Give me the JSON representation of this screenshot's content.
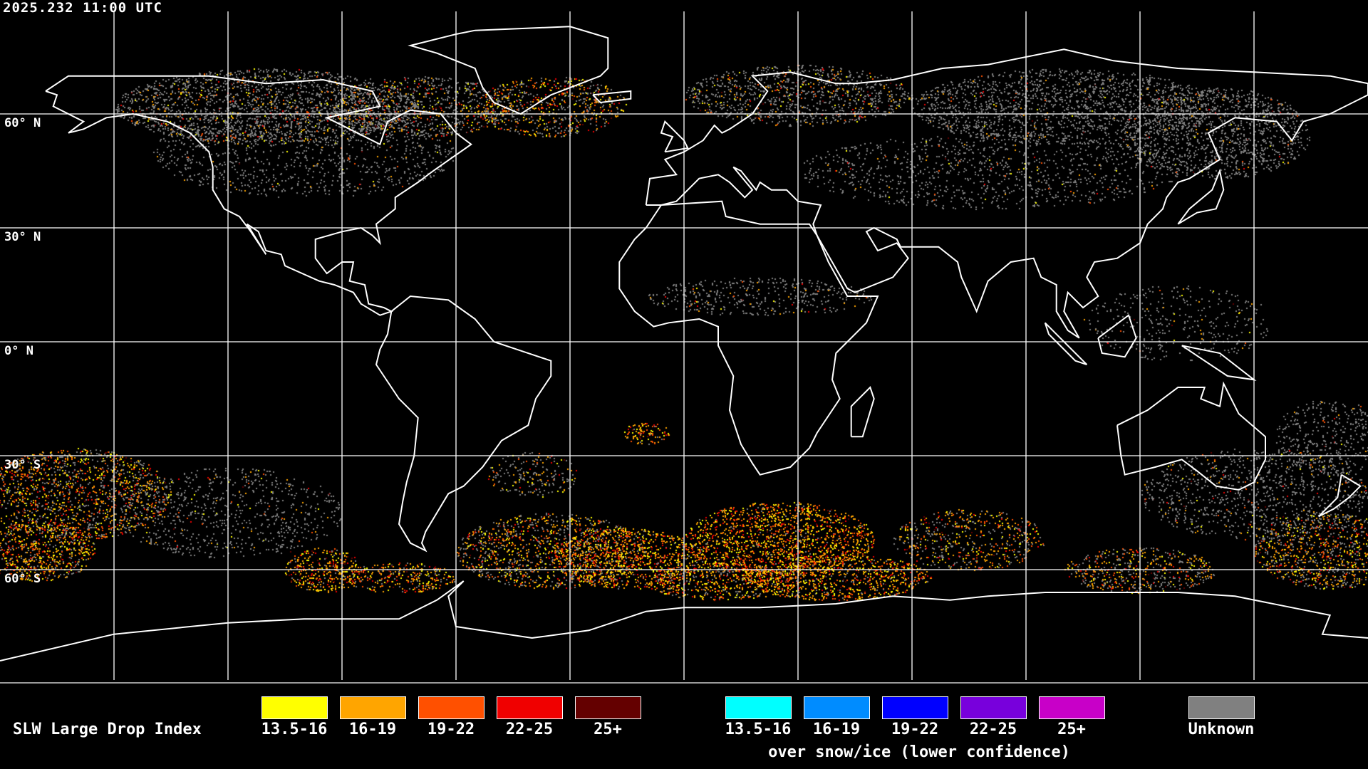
{
  "header": {
    "timestamp": "2025.232 11:00 UTC"
  },
  "map": {
    "projection": "equirectangular",
    "grid_spacing_degrees": 30,
    "lat_labels": [
      "60° N",
      "30° N",
      "0° N",
      "30° S",
      "60° S"
    ],
    "coastline_color": "#ffffff",
    "grid_color": "#ffffff"
  },
  "legend": {
    "title": "SLW Large Drop Index",
    "normal": [
      {
        "label": "13.5-16",
        "color": "#ffff00"
      },
      {
        "label": "16-19",
        "color": "#ffa500"
      },
      {
        "label": "19-22",
        "color": "#ff5000"
      },
      {
        "label": "22-25",
        "color": "#f00000"
      },
      {
        "label": "25+",
        "color": "#640000"
      }
    ],
    "snow_ice": [
      {
        "label": "13.5-16",
        "color": "#00ffff"
      },
      {
        "label": "16-19",
        "color": "#008cff"
      },
      {
        "label": "19-22",
        "color": "#0000ff"
      },
      {
        "label": "22-25",
        "color": "#7800dc"
      },
      {
        "label": "25+",
        "color": "#c800c8"
      }
    ],
    "snow_ice_note": "over snow/ice (lower confidence)",
    "unknown": {
      "label": "Unknown",
      "color": "#808080"
    }
  }
}
